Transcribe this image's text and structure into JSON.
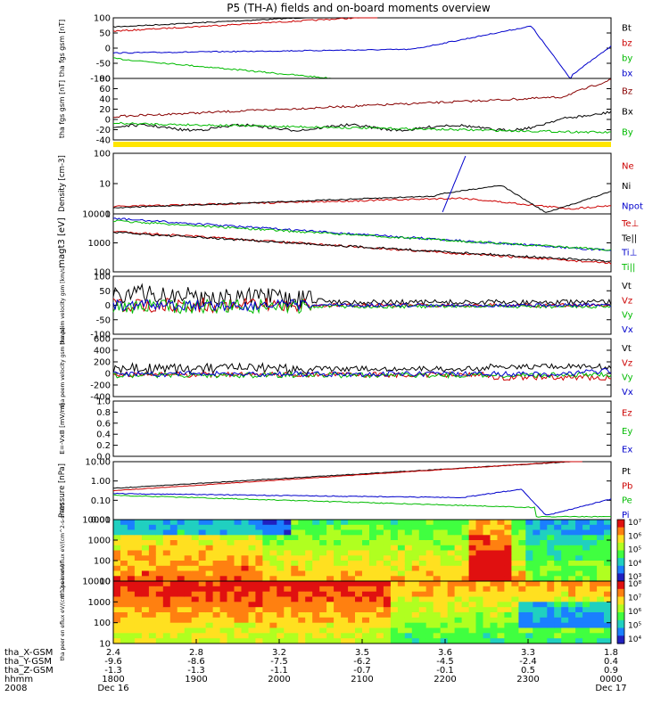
{
  "title": "P5 (TH-A) fields and on-board moments overview",
  "chart_data": [
    {
      "type": "line",
      "ylabel": "tha fgs gsm [nT]",
      "yticks": [
        "100",
        "50",
        "0",
        "-50",
        "-100"
      ],
      "ylim": [
        -100,
        100
      ],
      "legend": [
        {
          "name": "Bt",
          "color": "#000000"
        },
        {
          "name": "bz",
          "color": "#cc0000"
        },
        {
          "name": "by",
          "color": "#00bb00"
        },
        {
          "name": "bx",
          "color": "#0000cc"
        }
      ]
    },
    {
      "type": "line",
      "ylabel": "tha fgs gsm [nT]",
      "yticks": [
        "80",
        "60",
        "40",
        "20",
        "0",
        "-20",
        "-40"
      ],
      "ylim": [
        -50,
        80
      ],
      "legend": [
        {
          "name": "Bz",
          "color": "#880000"
        },
        {
          "name": "Bx",
          "color": "#000000"
        },
        {
          "name": "By",
          "color": "#00bb00"
        }
      ]
    },
    {
      "type": "line",
      "ylabel": "Density [cm-3]",
      "yticks": [
        "100",
        "10",
        "1"
      ],
      "scale": "log",
      "legend": [
        {
          "name": "Ne",
          "color": "#cc0000"
        },
        {
          "name": "Ni",
          "color": "#000000"
        },
        {
          "name": "Npot",
          "color": "#0000cc"
        }
      ]
    },
    {
      "type": "line",
      "ylabel": "magt3 [eV]",
      "yticks": [
        "10000",
        "1000",
        "100"
      ],
      "scale": "log",
      "legend": [
        {
          "name": "Te⊥",
          "color": "#cc0000"
        },
        {
          "name": "Te||",
          "color": "#000000"
        },
        {
          "name": "Ti⊥",
          "color": "#0000cc"
        },
        {
          "name": "Ti||",
          "color": "#00bb00"
        }
      ]
    },
    {
      "type": "line",
      "ylabel": "tha peim velocity gsm [km/s]",
      "yticks": [
        "100",
        "50",
        "0",
        "-50",
        "-100"
      ],
      "ylim": [
        -100,
        100
      ],
      "legend": [
        {
          "name": "Vt",
          "color": "#000000"
        },
        {
          "name": "Vz",
          "color": "#cc0000"
        },
        {
          "name": "Vy",
          "color": "#00bb00"
        },
        {
          "name": "Vx",
          "color": "#0000cc"
        }
      ]
    },
    {
      "type": "line",
      "ylabel": "tha peem velocity gsm [km/s]",
      "yticks": [
        "600",
        "400",
        "200",
        "0",
        "-200",
        "-400"
      ],
      "ylim": [
        -400,
        600
      ],
      "legend": [
        {
          "name": "Vt",
          "color": "#000000"
        },
        {
          "name": "Vz",
          "color": "#cc0000"
        },
        {
          "name": "Vy",
          "color": "#00bb00"
        },
        {
          "name": "Vx",
          "color": "#0000cc"
        }
      ]
    },
    {
      "type": "line",
      "ylabel": "E=-VxB [mV/m]",
      "yticks": [
        "1.0",
        "0.8",
        "0.6",
        "0.4",
        "0.2",
        "0.0"
      ],
      "ylim": [
        0,
        1
      ],
      "legend": [
        {
          "name": "Ez",
          "color": "#cc0000"
        },
        {
          "name": "Ey",
          "color": "#00bb00"
        },
        {
          "name": "Ex",
          "color": "#0000cc"
        }
      ]
    },
    {
      "type": "line",
      "ylabel": "Pressure [nPa]",
      "yticks": [
        "10.00",
        "1.00",
        "0.10",
        "0.01"
      ],
      "scale": "log",
      "legend": [
        {
          "name": "Pt",
          "color": "#000000"
        },
        {
          "name": "Pb",
          "color": "#cc0000"
        },
        {
          "name": "Pe",
          "color": "#00bb00"
        },
        {
          "name": "Pi",
          "color": "#0000cc"
        }
      ]
    },
    {
      "type": "heatmap",
      "ylabel": "tha peir en eflux eV/(cm^2-s-sr-eV)",
      "yticks": [
        "10000",
        "1000",
        "100",
        "10"
      ],
      "colorbar": [
        "10⁷",
        "10⁶",
        "10⁵",
        "10⁴",
        "10³"
      ]
    },
    {
      "type": "heatmap",
      "ylabel": "tha peer en eflux eV/(cm^2-s-sr-eV)",
      "yticks": [
        "10000",
        "1000",
        "100",
        "10"
      ],
      "colorbar": [
        "10⁸",
        "10⁷",
        "10⁶",
        "10⁵",
        "10⁴"
      ]
    }
  ],
  "xaxis": {
    "rows": [
      {
        "label": "tha_X-GSM",
        "values": [
          "2.4",
          "2.8",
          "3.2",
          "3.5",
          "3.6",
          "3.3",
          "1.8"
        ]
      },
      {
        "label": "tha_Y-GSM",
        "values": [
          "-9.6",
          "-8.6",
          "-7.5",
          "-6.2",
          "-4.5",
          "-2.4",
          "0.4"
        ]
      },
      {
        "label": "tha_Z-GSM",
        "values": [
          "-1.3",
          "-1.3",
          "-1.1",
          "-0.7",
          "-0.1",
          "0.5",
          "0.9"
        ]
      },
      {
        "label": "hhmm",
        "values": [
          "1800",
          "1900",
          "2000",
          "2100",
          "2200",
          "2300",
          "0000"
        ]
      }
    ],
    "year": "2008",
    "start_date": "Dec 16",
    "end_date": "Dec 17"
  }
}
